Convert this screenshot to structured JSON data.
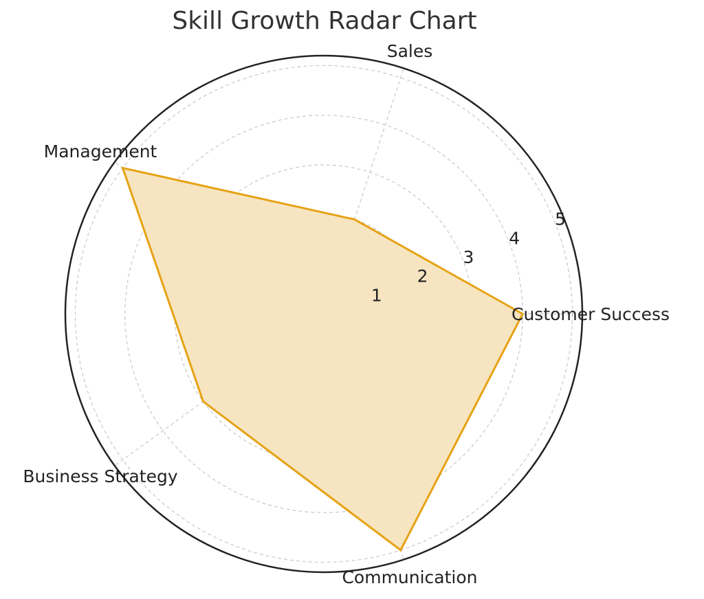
{
  "chart_data": {
    "type": "radar",
    "title": "Skill Growth Radar Chart",
    "categories": [
      "Customer Success",
      "Sales",
      "Management",
      "Business Strategy",
      "Communication"
    ],
    "series": [
      {
        "values": [
          4,
          2,
          5,
          3,
          5
        ]
      }
    ],
    "rlim": [
      0,
      5.2
    ],
    "r_ticks": [
      1,
      2,
      3,
      4,
      5
    ],
    "grid": true,
    "colors": {
      "line": "#E6A214",
      "fill": "#F5E4BD",
      "grid": "#c8c8c8",
      "frame": "#222222"
    }
  }
}
